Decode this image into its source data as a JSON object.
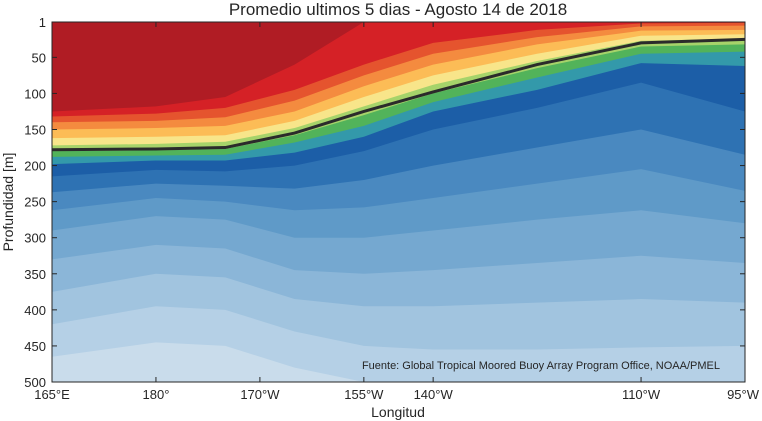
{
  "chart_data": {
    "type": "contour",
    "title": "Promedio ultimos 5 dias - Agosto 14 de 2018",
    "xlabel": "Longitud",
    "ylabel": "Profundidad [m]",
    "annotation": "Fuente: Global Tropical Moored Buoy Array Program Office, NOAA/PMEL",
    "xlim": [
      165,
      265
    ],
    "ylim": [
      500,
      1
    ],
    "x_ticks": [
      {
        "value": 165,
        "label": "165°E"
      },
      {
        "value": 180,
        "label": "180°"
      },
      {
        "value": 195,
        "label": "170°W"
      },
      {
        "value": 210,
        "label": "155°W"
      },
      {
        "value": 220,
        "label": "140°W"
      },
      {
        "value": 250,
        "label": "110°W"
      },
      {
        "value": 265,
        "label": "95°W"
      }
    ],
    "y_ticks": [
      1,
      50,
      100,
      150,
      200,
      250,
      300,
      350,
      400,
      450,
      500
    ],
    "x": [
      165,
      180,
      190,
      200,
      210,
      220,
      235,
      250,
      265
    ],
    "thermocline_depth": [
      178,
      177,
      175,
      155,
      125,
      98,
      60,
      30,
      25
    ],
    "level_colors": [
      "#c9dceb",
      "#b5d0e6",
      "#a1c4df",
      "#8bb6d8",
      "#75a8d0",
      "#5f9ac8",
      "#4a89c0",
      "#2e72b3",
      "#1c5ea7",
      "#3399aa",
      "#52b35a",
      "#a6d36a",
      "#f8e58a",
      "#fcbc56",
      "#f48b3f",
      "#e5542e",
      "#d52126",
      "#b01c24"
    ],
    "contour_depths": {
      "band_edges": [
        {
          "i": 0,
          "depths": [
            465,
            445,
            450,
            480,
            500,
            500,
            500,
            500,
            500
          ]
        },
        {
          "i": 1,
          "depths": [
            420,
            395,
            400,
            430,
            450,
            455,
            455,
            452,
            450
          ]
        },
        {
          "i": 2,
          "depths": [
            375,
            350,
            355,
            385,
            395,
            395,
            390,
            385,
            390
          ]
        },
        {
          "i": 3,
          "depths": [
            330,
            310,
            315,
            345,
            350,
            345,
            335,
            325,
            335
          ]
        },
        {
          "i": 4,
          "depths": [
            290,
            270,
            275,
            300,
            300,
            290,
            275,
            262,
            280
          ]
        },
        {
          "i": 5,
          "depths": [
            262,
            245,
            250,
            262,
            258,
            245,
            225,
            205,
            235
          ]
        },
        {
          "i": 6,
          "depths": [
            237,
            225,
            228,
            232,
            220,
            200,
            175,
            150,
            185
          ]
        },
        {
          "i": 7,
          "depths": [
            215,
            206,
            208,
            200,
            180,
            150,
            120,
            85,
            125
          ]
        },
        {
          "i": 8,
          "depths": [
            198,
            193,
            193,
            182,
            160,
            125,
            95,
            58,
            62
          ]
        },
        {
          "i": 9,
          "depths": [
            188,
            186,
            185,
            168,
            145,
            112,
            78,
            45,
            42
          ]
        },
        {
          "i": 10,
          "depths": [
            180,
            179,
            177,
            158,
            130,
            100,
            65,
            35,
            32
          ]
        },
        {
          "i": 11,
          "depths": [
            172,
            170,
            167,
            148,
            118,
            88,
            55,
            27,
            24
          ]
        },
        {
          "i": 12,
          "depths": [
            162,
            160,
            158,
            138,
            105,
            75,
            45,
            20,
            18
          ]
        },
        {
          "i": 13,
          "depths": [
            150,
            148,
            145,
            125,
            90,
            60,
            32,
            13,
            12
          ]
        },
        {
          "i": 14,
          "depths": [
            140,
            138,
            133,
            110,
            75,
            45,
            22,
            7,
            6
          ]
        },
        {
          "i": 15,
          "depths": [
            132,
            128,
            120,
            95,
            60,
            30,
            12,
            3,
            2
          ]
        },
        {
          "i": 16,
          "depths": [
            125,
            118,
            105,
            60,
            1,
            1,
            1,
            1,
            1
          ]
        }
      ]
    }
  }
}
